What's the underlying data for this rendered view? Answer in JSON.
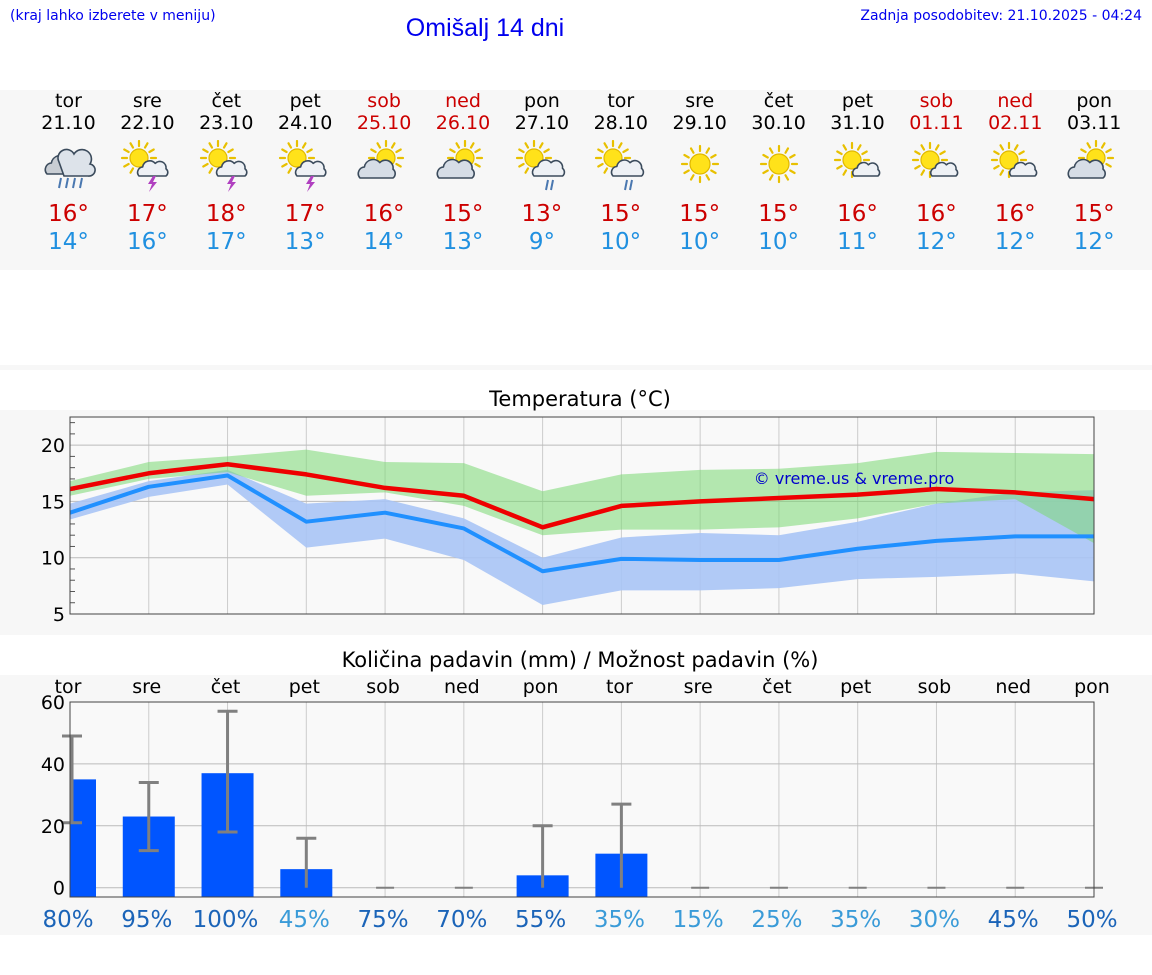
{
  "header": {
    "hint": "(kraj lahko izberete v meniju)",
    "title": "Omišalj 14 dni",
    "updated": "Zadnja posodobitev: 21.10.2025 - 04:24"
  },
  "colors": {
    "max_temp": "#ee0000",
    "min_temp": "#2090ff",
    "max_band": "#a8e6a0",
    "min_band": "#a8c4f5",
    "bar": "#0055ff",
    "weekend": "#cc0000"
  },
  "days": [
    {
      "name": "tor",
      "date": "21.10",
      "weekend": false,
      "icon": "cloud-rain-icon",
      "max": "16°",
      "min": "14°"
    },
    {
      "name": "sre",
      "date": "22.10",
      "weekend": false,
      "icon": "sun-storm-icon",
      "max": "17°",
      "min": "16°"
    },
    {
      "name": "čet",
      "date": "23.10",
      "weekend": false,
      "icon": "sun-storm-icon",
      "max": "18°",
      "min": "17°"
    },
    {
      "name": "pet",
      "date": "24.10",
      "weekend": false,
      "icon": "sun-storm-icon",
      "max": "17°",
      "min": "13°"
    },
    {
      "name": "sob",
      "date": "25.10",
      "weekend": true,
      "icon": "sun-cloud-icon",
      "max": "16°",
      "min": "14°"
    },
    {
      "name": "ned",
      "date": "26.10",
      "weekend": true,
      "icon": "sun-cloud-icon",
      "max": "15°",
      "min": "13°"
    },
    {
      "name": "pon",
      "date": "27.10",
      "weekend": false,
      "icon": "sun-cloud-rain-icon",
      "max": "13°",
      "min": "9°"
    },
    {
      "name": "tor",
      "date": "28.10",
      "weekend": false,
      "icon": "sun-cloud-rain-icon",
      "max": "15°",
      "min": "10°"
    },
    {
      "name": "sre",
      "date": "29.10",
      "weekend": false,
      "icon": "sun-icon",
      "max": "15°",
      "min": "10°"
    },
    {
      "name": "čet",
      "date": "30.10",
      "weekend": false,
      "icon": "sun-icon",
      "max": "15°",
      "min": "10°"
    },
    {
      "name": "pet",
      "date": "31.10",
      "weekend": false,
      "icon": "sun-small-cloud-icon",
      "max": "16°",
      "min": "11°"
    },
    {
      "name": "sob",
      "date": "01.11",
      "weekend": true,
      "icon": "sun-small-cloud-icon",
      "max": "16°",
      "min": "12°"
    },
    {
      "name": "ned",
      "date": "02.11",
      "weekend": true,
      "icon": "sun-small-cloud-icon",
      "max": "16°",
      "min": "12°"
    },
    {
      "name": "pon",
      "date": "03.11",
      "weekend": false,
      "icon": "sun-cloud-icon",
      "max": "15°",
      "min": "12°"
    }
  ],
  "chart_data": [
    {
      "type": "line",
      "title": "Temperatura (°C)",
      "xlabel": "",
      "ylabel": "",
      "x": [
        0,
        1,
        2,
        3,
        4,
        5,
        6,
        7,
        8,
        9,
        10,
        11,
        12,
        13
      ],
      "ylim": [
        5,
        22.5
      ],
      "yticks": [
        5,
        10,
        15,
        20
      ],
      "grid": true,
      "watermark": "© vreme.us & vreme.pro",
      "series": [
        {
          "name": "max",
          "values": [
            16.1,
            17.5,
            18.3,
            17.4,
            16.2,
            15.5,
            12.7,
            14.6,
            15.0,
            15.3,
            15.6,
            16.1,
            15.8,
            15.2
          ]
        },
        {
          "name": "min",
          "values": [
            14.0,
            16.3,
            17.3,
            13.2,
            14.0,
            12.6,
            8.8,
            9.9,
            9.8,
            9.8,
            10.8,
            11.5,
            11.9,
            11.9
          ]
        }
      ],
      "bands": [
        {
          "name": "max_range",
          "upper": [
            16.8,
            18.5,
            19.0,
            19.6,
            18.5,
            18.4,
            15.9,
            17.4,
            17.8,
            17.9,
            18.4,
            19.4,
            19.3,
            19.2
          ],
          "lower": [
            15.5,
            17.0,
            17.6,
            15.5,
            15.8,
            14.6,
            12.0,
            12.5,
            12.5,
            12.7,
            13.5,
            14.8,
            15.2,
            11.3
          ]
        },
        {
          "name": "min_range",
          "upper": [
            14.8,
            16.8,
            17.8,
            14.8,
            15.2,
            13.5,
            10.0,
            11.8,
            12.2,
            12.0,
            13.2,
            14.8,
            15.8,
            16.0
          ],
          "lower": [
            13.4,
            15.4,
            16.5,
            10.9,
            11.7,
            9.8,
            5.8,
            7.1,
            7.1,
            7.3,
            8.1,
            8.3,
            8.6,
            7.9
          ]
        }
      ]
    },
    {
      "type": "bar",
      "title": "Količina padavin (mm) / Možnost padavin (%)",
      "categories": [
        "tor",
        "sre",
        "čet",
        "pet",
        "sob",
        "ned",
        "pon",
        "tor",
        "sre",
        "čet",
        "pet",
        "sob",
        "ned",
        "pon"
      ],
      "values": [
        35,
        23,
        37,
        6,
        0,
        0,
        4,
        11,
        0,
        0,
        0,
        0,
        0,
        0
      ],
      "error_high": [
        49,
        34,
        57,
        16,
        0,
        0,
        20,
        27,
        0,
        0,
        0,
        0,
        0,
        0
      ],
      "error_low": [
        21,
        12,
        18,
        0,
        0,
        0,
        0,
        0,
        0,
        0,
        0,
        0,
        0,
        0
      ],
      "probability_labels": [
        "80%",
        "95%",
        "100%",
        "45%",
        "75%",
        "70%",
        "55%",
        "35%",
        "15%",
        "25%",
        "35%",
        "30%",
        "45%",
        "50%"
      ],
      "probability_colors": [
        "#1b64b8",
        "#1b64b8",
        "#1b64b8",
        "#3a9bd8",
        "#1b64b8",
        "#1b64b8",
        "#1b64b8",
        "#3a9bd8",
        "#3a9bd8",
        "#3a9bd8",
        "#3a9bd8",
        "#3a9bd8",
        "#1b64b8",
        "#1b64b8"
      ],
      "ylim": [
        -3,
        60
      ],
      "yticks": [
        0,
        20,
        40,
        60
      ],
      "grid": true
    }
  ]
}
